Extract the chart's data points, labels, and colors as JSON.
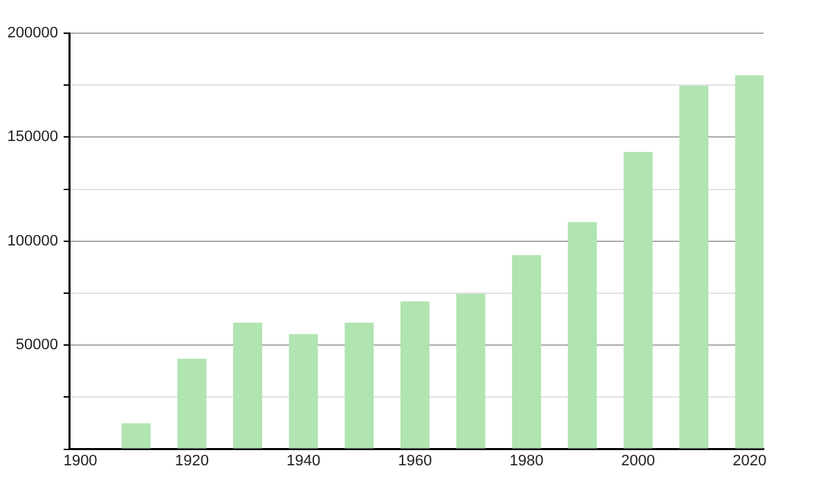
{
  "chart_data": {
    "type": "bar",
    "x": [
      1910,
      1920,
      1930,
      1940,
      1950,
      1960,
      1970,
      1980,
      1990,
      2000,
      2010,
      2020
    ],
    "values": [
      12400,
      43500,
      60800,
      55300,
      60800,
      71000,
      74700,
      93300,
      109200,
      142900,
      174700,
      179700
    ],
    "color": "#b0e4b0",
    "xlim": [
      1898,
      2022.5
    ],
    "xticks": [
      1900,
      1920,
      1940,
      1960,
      1980,
      2000,
      2020
    ],
    "ylim": [
      0,
      200000
    ],
    "yticks": [
      {
        "value": 0,
        "label": null
      },
      {
        "value": 25000,
        "label": null
      },
      50000,
      {
        "value": 75000,
        "label": null
      },
      100000,
      {
        "value": 125000,
        "label": null
      },
      150000,
      {
        "value": 175000,
        "label": null
      },
      200000
    ],
    "grid": "y",
    "legend": false
  }
}
